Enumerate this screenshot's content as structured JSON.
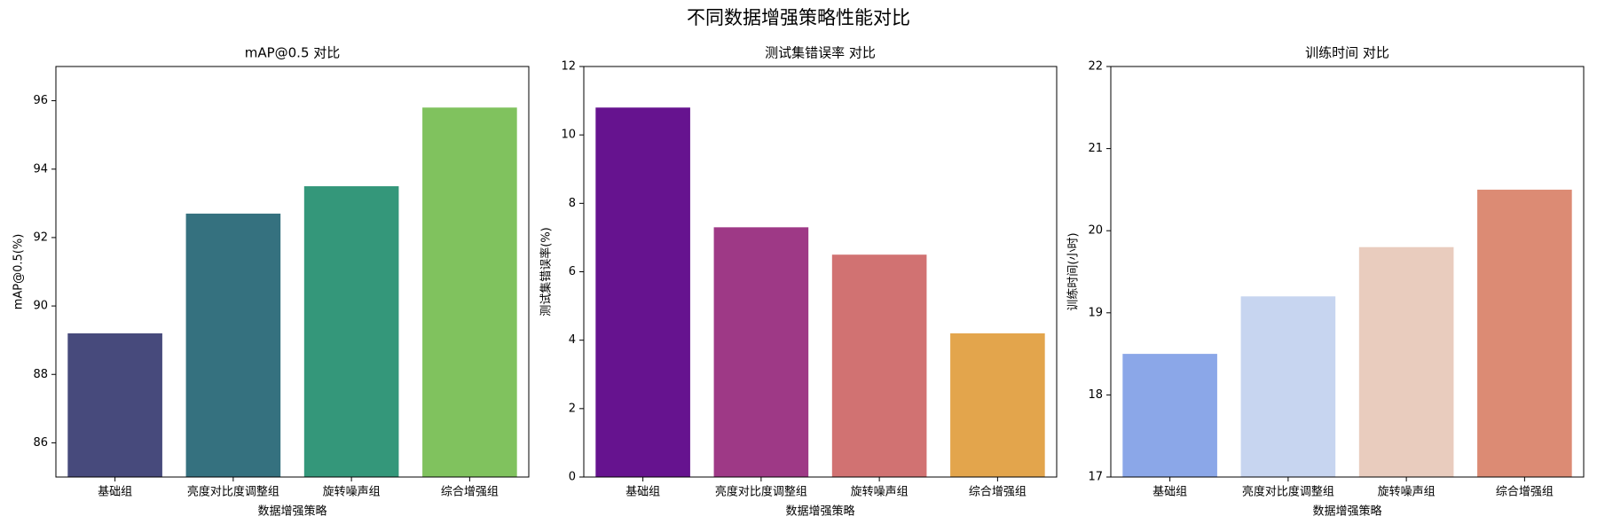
{
  "title": "不同数据增强策略性能对比",
  "chart_data": [
    {
      "type": "bar",
      "title": "mAP@0.5 对比",
      "xlabel": "数据增强策略",
      "ylabel": "mAP@0.5(%)",
      "categories": [
        "基础组",
        "亮度对比度调整组",
        "旋转噪声组",
        "综合增强组"
      ],
      "values": [
        89.2,
        92.7,
        93.5,
        95.8
      ],
      "colors": [
        "#474a7c",
        "#35717f",
        "#34977a",
        "#80c25e"
      ],
      "ylim": [
        85,
        97
      ],
      "yticks": [
        86,
        88,
        90,
        92,
        94,
        96
      ]
    },
    {
      "type": "bar",
      "title": "测试集错误率 对比",
      "xlabel": "数据增强策略",
      "ylabel": "测试集错误率(%)",
      "categories": [
        "基础组",
        "亮度对比度调整组",
        "旋转噪声组",
        "综合增强组"
      ],
      "values": [
        10.8,
        7.3,
        6.5,
        4.2
      ],
      "colors": [
        "#66138f",
        "#9e3986",
        "#d17272",
        "#e3a54c"
      ],
      "ylim": [
        0,
        12
      ],
      "yticks": [
        0,
        2,
        4,
        6,
        8,
        10,
        12
      ]
    },
    {
      "type": "bar",
      "title": "训练时间 对比",
      "xlabel": "数据增强策略",
      "ylabel": "训练时间(小时)",
      "categories": [
        "基础组",
        "亮度对比度调整组",
        "旋转噪声组",
        "综合增强组"
      ],
      "values": [
        18.5,
        19.2,
        19.8,
        20.5
      ],
      "colors": [
        "#8ba7e8",
        "#c7d5f0",
        "#e9ccbe",
        "#dc8b74"
      ],
      "ylim": [
        17,
        22
      ],
      "yticks": [
        17,
        18,
        19,
        20,
        21,
        22
      ]
    }
  ]
}
